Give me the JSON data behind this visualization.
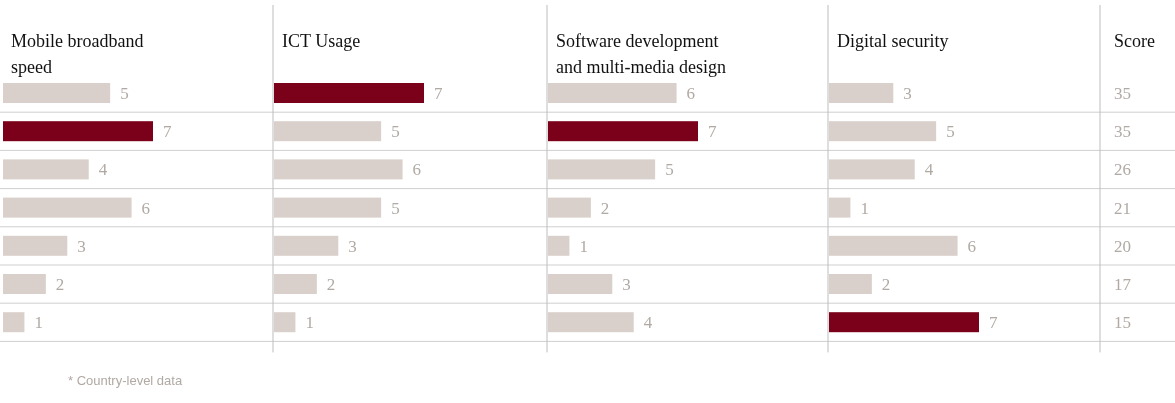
{
  "chart_data": [
    {
      "type": "bar",
      "orientation": "horizontal",
      "title": "Mobile broadband speed",
      "categories": [
        null,
        null,
        null,
        null,
        null,
        null,
        null
      ],
      "values": [
        5,
        7,
        4,
        6,
        3,
        2,
        1
      ],
      "colors": [
        "#d9d0cb",
        "#7b0019",
        "#d9d0cb",
        "#d9d0cb",
        "#d9d0cb",
        "#d9d0cb",
        "#d9d0cb"
      ],
      "data_labels": true
    },
    {
      "type": "bar",
      "orientation": "horizontal",
      "title": "ICT Usage",
      "categories": [
        null,
        null,
        null,
        null,
        null,
        null,
        null
      ],
      "values": [
        7,
        5,
        6,
        5,
        3,
        2,
        1
      ],
      "colors": [
        "#7b0019",
        "#d9d0cb",
        "#d9d0cb",
        "#d9d0cb",
        "#d9d0cb",
        "#d9d0cb",
        "#d9d0cb"
      ],
      "data_labels": true
    },
    {
      "type": "bar",
      "orientation": "horizontal",
      "title": "Software development and multi-media design",
      "categories": [
        null,
        null,
        null,
        null,
        null,
        null,
        null
      ],
      "values": [
        6,
        7,
        5,
        2,
        1,
        3,
        4
      ],
      "colors": [
        "#d9d0cb",
        "#7b0019",
        "#d9d0cb",
        "#d9d0cb",
        "#d9d0cb",
        "#d9d0cb",
        "#d9d0cb"
      ],
      "data_labels": true
    },
    {
      "type": "bar",
      "orientation": "horizontal",
      "title": "Digital security",
      "categories": [
        null,
        null,
        null,
        null,
        null,
        null,
        null
      ],
      "values": [
        3,
        5,
        4,
        1,
        6,
        2,
        7
      ],
      "colors": [
        "#d9d0cb",
        "#d9d0cb",
        "#d9d0cb",
        "#d9d0cb",
        "#d9d0cb",
        "#d9d0cb",
        "#7b0019"
      ],
      "data_labels": true
    },
    {
      "type": "other",
      "title": "Score",
      "categories": [
        null,
        null,
        null,
        null,
        null,
        null,
        null
      ],
      "values": [
        35,
        35,
        26,
        21,
        20,
        17,
        15
      ],
      "data_labels": true,
      "annotations": [
        "* Country-level data"
      ]
    }
  ]
}
